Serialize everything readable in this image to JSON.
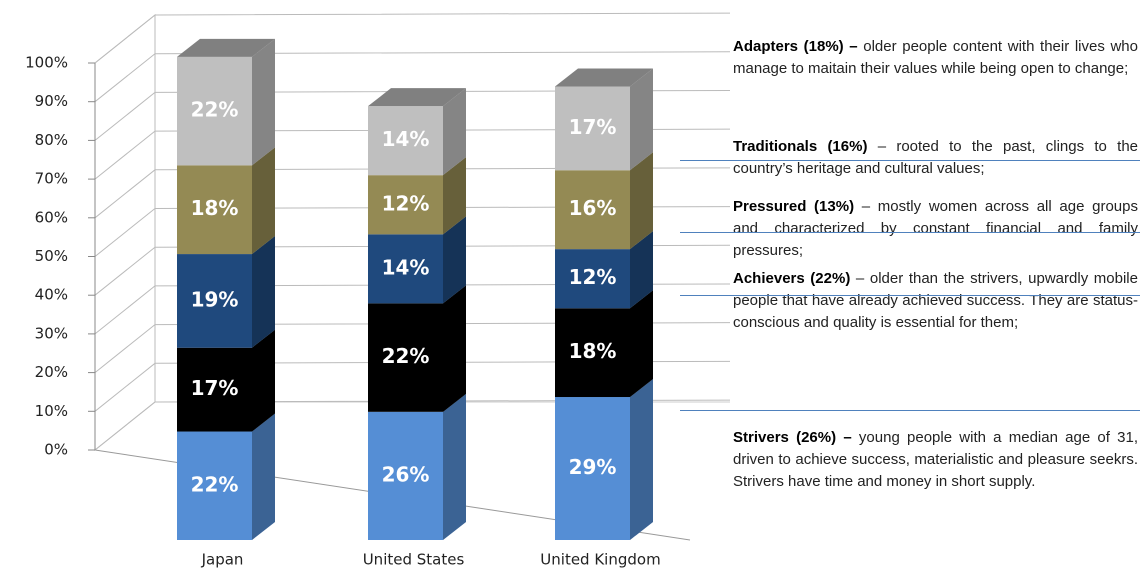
{
  "chart_data": {
    "type": "bar3d_stacked",
    "categories": [
      "Japan",
      "United States",
      "United Kingdom"
    ],
    "series": [
      {
        "color": "#558ed5",
        "values": [
          22,
          26,
          29
        ],
        "value_labels": [
          "22%",
          "26%",
          "29%"
        ]
      },
      {
        "color": "#000000",
        "values": [
          17,
          22,
          18
        ],
        "value_labels": [
          "17%",
          "22%",
          "18%"
        ]
      },
      {
        "color": "#1f497d",
        "values": [
          19,
          14,
          12
        ],
        "value_labels": [
          "19%",
          "14%",
          "12%"
        ]
      },
      {
        "color": "#948a54",
        "values": [
          18,
          12,
          16
        ],
        "value_labels": [
          "18%",
          "12%",
          "16%"
        ]
      },
      {
        "color": "#bfbfbf",
        "values": [
          22,
          14,
          17
        ],
        "value_labels": [
          "22%",
          "14%",
          "17%"
        ]
      }
    ],
    "ylim": [
      0,
      100
    ],
    "yticks": [
      {
        "value": 0,
        "label": "0%"
      },
      {
        "value": 10,
        "label": "10%"
      },
      {
        "value": 20,
        "label": "20%"
      },
      {
        "value": 30,
        "label": "30%"
      },
      {
        "value": 40,
        "label": "40%"
      },
      {
        "value": 50,
        "label": "50%"
      },
      {
        "value": 60,
        "label": "60%"
      },
      {
        "value": 70,
        "label": "70%"
      },
      {
        "value": 80,
        "label": "80%"
      },
      {
        "value": 90,
        "label": "90%"
      },
      {
        "value": 100,
        "label": "100%"
      }
    ],
    "grid": true
  },
  "notes": [
    {
      "heading": "Adapters (18%) –",
      "text": " older people content with their lives who manage to maitain their values while being open to change;"
    },
    {
      "heading": "Traditionals (16%)",
      "text": " – rooted to the past, clings to the country’s heritage and cultural values;"
    },
    {
      "heading": "Pressured (13%)",
      "text": " – mostly women across all age groups and characterized by constant financial and family pressures;"
    },
    {
      "heading": "Achievers (22%)",
      "text": " – older than the strivers, upwardly mobile people that have already achieved success. They are status-conscious and quality is essential for them;"
    },
    {
      "heading": "Strivers (26%) –",
      "text": " young people with a median age of 31, driven to achieve success, materialistic and pleasure seekrs. Strivers have time and money  in short supply."
    }
  ]
}
